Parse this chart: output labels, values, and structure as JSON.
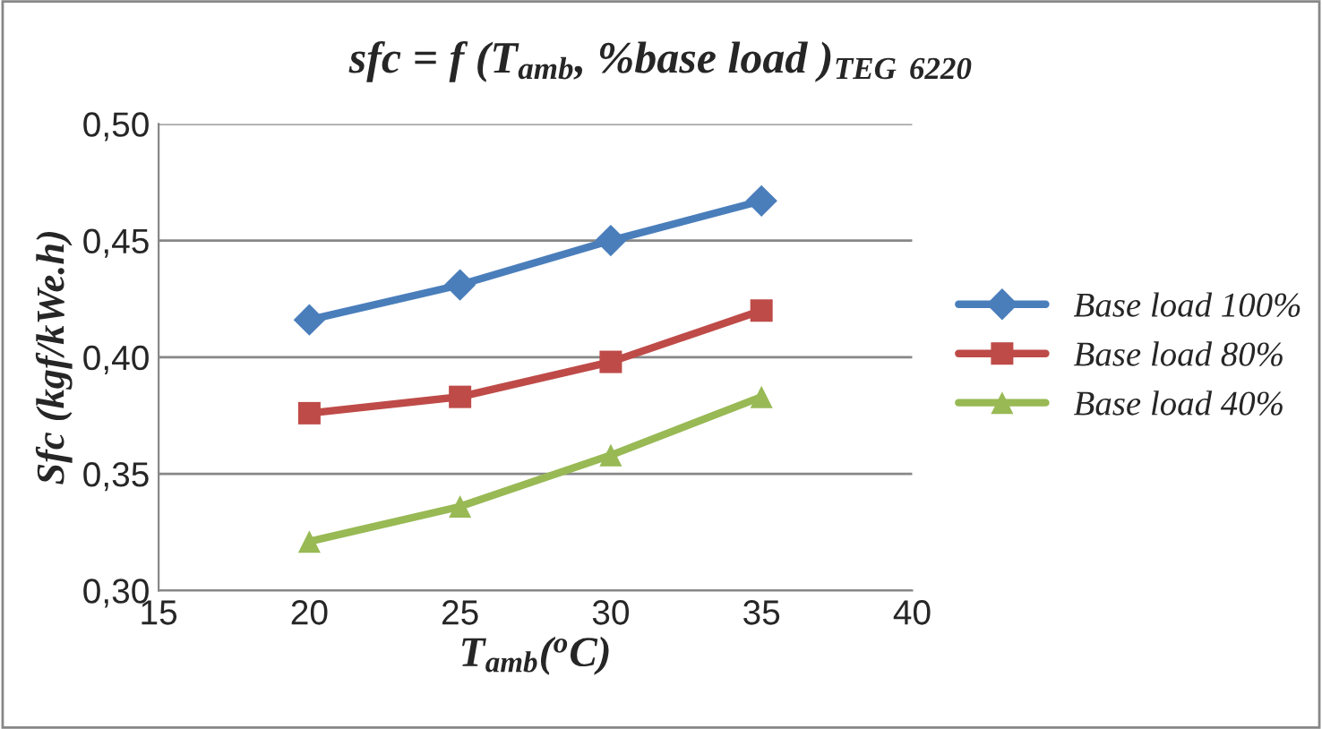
{
  "chart_data": {
    "type": "line",
    "title": "sfc = f (T$_{amb}$, %base load )$_{TEG 6220}$",
    "xlabel": "T$_{amb}$($^{o}$C)",
    "ylabel": "Sfc (kgf/kWe.h)",
    "x": [
      20,
      25,
      30,
      35
    ],
    "series": [
      {
        "name": "Base load 100%",
        "color": "#4a7ebb",
        "marker": "diamond",
        "values": [
          0.416,
          0.431,
          0.45,
          0.467
        ]
      },
      {
        "name": "Base load 80%",
        "color": "#be4b48",
        "marker": "square",
        "values": [
          0.376,
          0.383,
          0.398,
          0.42
        ]
      },
      {
        "name": "Base load 40%",
        "color": "#98b954",
        "marker": "triangle",
        "values": [
          0.321,
          0.336,
          0.358,
          0.383
        ]
      }
    ],
    "xlim": [
      15,
      40
    ],
    "xticks": [
      15,
      20,
      25,
      30,
      35,
      40
    ],
    "ylim": [
      0.3,
      0.5
    ],
    "yticks": [
      {
        "value": 0.3,
        "label": "0,30"
      },
      {
        "value": 0.35,
        "label": "0,35"
      },
      {
        "value": 0.4,
        "label": "0,40"
      },
      {
        "value": 0.45,
        "label": "0,45"
      },
      {
        "value": 0.5,
        "label": "0,50"
      }
    ],
    "grid": "y",
    "legend": "right",
    "line_style": "solid"
  }
}
